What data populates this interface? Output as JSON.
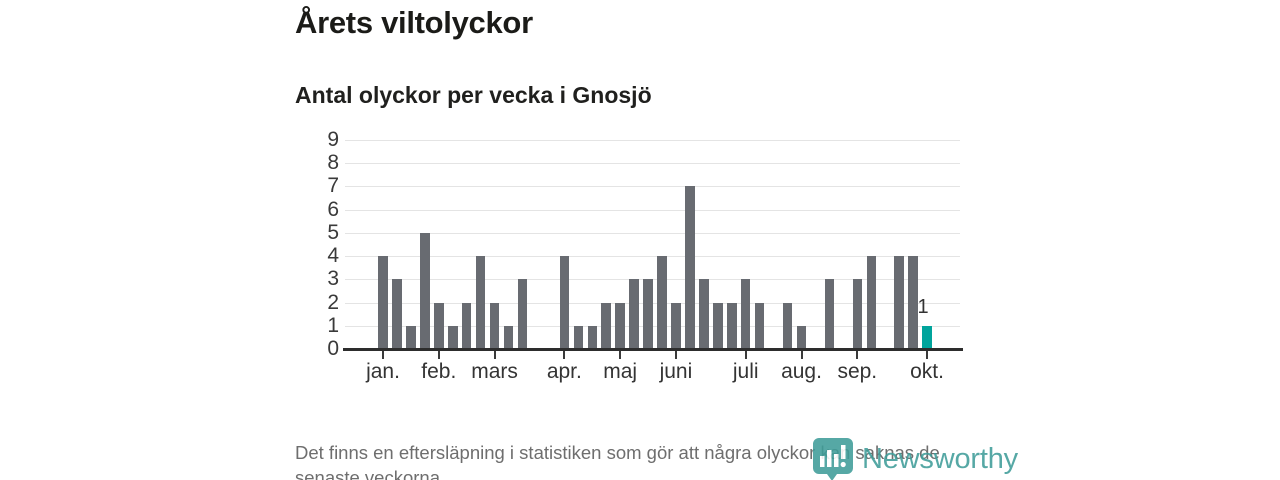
{
  "page": {
    "title": "Årets viltolyckor",
    "subtitle": "Antal olyckor per vecka i Gnosjö",
    "footnote": "Det finns en eftersläpning i statistiken som gör att några olyckor kan saknas de senaste veckorna.",
    "brand": {
      "name": "Newsworthy",
      "icon": "newsworthy-pin-barchart-icon",
      "color": "#3f9d99"
    }
  },
  "chart_data": {
    "type": "bar",
    "title": "Årets viltolyckor",
    "subtitle": "Antal olyckor per vecka i Gnosjö",
    "xlabel": "",
    "ylabel": "",
    "x_unit": "week",
    "weeks_shown": 40,
    "values": [
      4,
      3,
      1,
      5,
      2,
      1,
      2,
      4,
      2,
      1,
      3,
      0,
      0,
      4,
      1,
      1,
      2,
      2,
      3,
      3,
      4,
      2,
      7,
      3,
      2,
      2,
      3,
      2,
      0,
      2,
      1,
      0,
      3,
      0,
      3,
      4,
      0,
      4,
      4,
      1
    ],
    "month_ticks": [
      {
        "label": "jan.",
        "week": 1
      },
      {
        "label": "feb.",
        "week": 5
      },
      {
        "label": "mars",
        "week": 9
      },
      {
        "label": "apr.",
        "week": 14
      },
      {
        "label": "maj",
        "week": 18
      },
      {
        "label": "juni",
        "week": 22
      },
      {
        "label": "juli",
        "week": 27
      },
      {
        "label": "aug.",
        "week": 31
      },
      {
        "label": "sep.",
        "week": 35
      },
      {
        "label": "okt.",
        "week": 40
      }
    ],
    "ylim": [
      0,
      9
    ],
    "yticks": [
      0,
      1,
      2,
      3,
      4,
      5,
      6,
      7,
      8,
      9
    ],
    "grid": "horizontal",
    "legend": "none",
    "bar_color": "#686b71",
    "gridline_color": "#e4e4e4",
    "axis_color": "#2d2d2d",
    "highlight": {
      "index": 39,
      "value": 1,
      "label": "1",
      "color": "#00a49c"
    }
  }
}
